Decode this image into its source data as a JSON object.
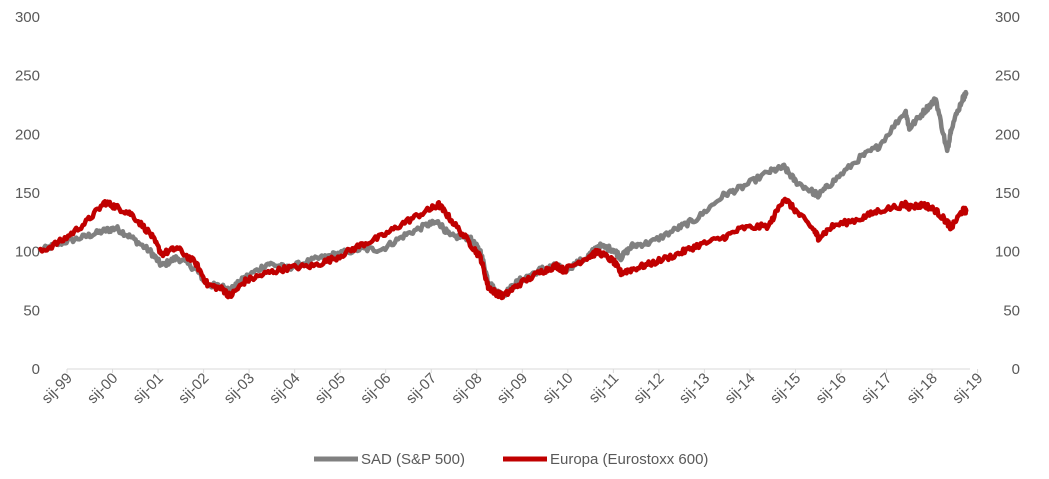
{
  "chart_data": {
    "type": "line",
    "title": "",
    "xlabel": "",
    "ylabel": "",
    "ylim": [
      0,
      300
    ],
    "y_ticks": [
      0,
      50,
      100,
      150,
      200,
      250,
      300
    ],
    "y2_ticks": [
      0,
      50,
      100,
      150,
      200,
      250,
      300
    ],
    "grid": false,
    "legend_position": "bottom",
    "x_ticks": [
      "sij-99",
      "sij-00",
      "sij-01",
      "sij-02",
      "sij-03",
      "sij-04",
      "sij-05",
      "sij-06",
      "sij-07",
      "sij-08",
      "sij-09",
      "sij-10",
      "sij-11",
      "sij-12",
      "sij-13",
      "sij-14",
      "sij-15",
      "sij-16",
      "sij-17",
      "sij-18",
      "sij-19"
    ],
    "x": [
      "1999-01",
      "1999-07",
      "2000-01",
      "2000-06",
      "2000-09",
      "2001-01",
      "2001-06",
      "2001-09",
      "2002-01",
      "2002-06",
      "2002-09",
      "2003-01",
      "2003-03",
      "2003-07",
      "2004-01",
      "2004-06",
      "2005-01",
      "2005-07",
      "2006-01",
      "2006-07",
      "2007-01",
      "2007-07",
      "2007-10",
      "2008-01",
      "2008-06",
      "2008-09",
      "2008-11",
      "2009-01",
      "2009-03",
      "2009-07",
      "2010-01",
      "2010-05",
      "2010-07",
      "2011-01",
      "2011-04",
      "2011-08",
      "2011-10",
      "2012-01",
      "2012-06",
      "2013-01",
      "2013-06",
      "2014-01",
      "2014-06",
      "2015-01",
      "2015-05",
      "2015-08",
      "2016-01",
      "2016-02",
      "2016-06",
      "2017-01",
      "2017-06",
      "2018-01",
      "2018-02",
      "2018-06",
      "2018-09",
      "2018-12",
      "2019-01",
      "2019-04",
      "2019-05"
    ],
    "series": [
      {
        "name": "SAD (S&P 500)",
        "color": "#808080",
        "values": [
          101,
          108,
          113,
          118,
          120,
          112,
          100,
          88,
          95,
          85,
          72,
          70,
          67,
          78,
          90,
          86,
          93,
          98,
          102,
          102,
          114,
          123,
          125,
          113,
          112,
          100,
          75,
          66,
          63,
          75,
          85,
          88,
          84,
          95,
          105,
          102,
          95,
          105,
          108,
          120,
          128,
          148,
          155,
          168,
          172,
          160,
          150,
          148,
          160,
          180,
          190,
          220,
          205,
          220,
          230,
          185,
          205,
          230,
          235
        ]
      },
      {
        "name": "Europa (Eurostoxx 600)",
        "color": "#c00000",
        "values": [
          100,
          110,
          125,
          142,
          138,
          132,
          115,
          98,
          103,
          90,
          72,
          68,
          62,
          75,
          82,
          86,
          88,
          95,
          105,
          113,
          125,
          135,
          140,
          128,
          108,
          95,
          70,
          65,
          62,
          72,
          83,
          88,
          84,
          95,
          100,
          92,
          82,
          85,
          90,
          98,
          105,
          112,
          120,
          122,
          146,
          135,
          118,
          112,
          122,
          128,
          135,
          140,
          138,
          140,
          135,
          125,
          120,
          135,
          135
        ]
      }
    ]
  }
}
